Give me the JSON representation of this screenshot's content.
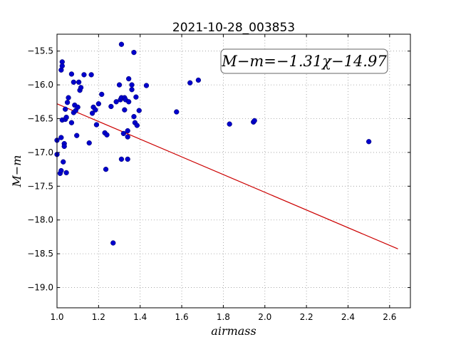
{
  "chart_data": {
    "type": "scatter",
    "title": "2021-10-28_003853",
    "xlabel": "airmass",
    "ylabel": "M−m",
    "xlim": [
      1.0,
      2.7
    ],
    "ylim": [
      -19.3,
      -15.25
    ],
    "y_inverted": true,
    "grid": true,
    "xticks": [
      1.0,
      1.2,
      1.4,
      1.6,
      1.8,
      2.0,
      2.2,
      2.4,
      2.6
    ],
    "xtick_labels": [
      "1.0",
      "1.2",
      "1.4",
      "1.6",
      "1.8",
      "2.0",
      "2.2",
      "2.4",
      "2.6"
    ],
    "yticks": [
      -15.5,
      -16.0,
      -16.5,
      -17.0,
      -17.5,
      -18.0,
      -18.5,
      -19.0
    ],
    "ytick_labels": [
      "−15.5",
      "−16.0",
      "−16.5",
      "−17.0",
      "−17.5",
      "−18.0",
      "−18.5",
      "−19.0"
    ],
    "annotation": "M−m=−1.31χ−14.97",
    "fit": {
      "slope": -1.31,
      "intercept": -14.97,
      "x_range": [
        1.0,
        2.64
      ],
      "color": "#cc0000"
    },
    "point_color": "#0000cc",
    "points": [
      [
        1.0,
        -16.82
      ],
      [
        1.0,
        -17.03
      ],
      [
        1.015,
        -17.31
      ],
      [
        1.02,
        -16.78
      ],
      [
        1.02,
        -17.27
      ],
      [
        1.02,
        -15.78
      ],
      [
        1.025,
        -15.66
      ],
      [
        1.025,
        -15.72
      ],
      [
        1.025,
        -16.52
      ],
      [
        1.03,
        -17.14
      ],
      [
        1.035,
        -16.87
      ],
      [
        1.035,
        -16.91
      ],
      [
        1.04,
        -16.36
      ],
      [
        1.04,
        -16.51
      ],
      [
        1.045,
        -16.48
      ],
      [
        1.045,
        -17.3
      ],
      [
        1.05,
        -16.26
      ],
      [
        1.055,
        -16.19
      ],
      [
        1.07,
        -15.84
      ],
      [
        1.07,
        -16.56
      ],
      [
        1.08,
        -15.96
      ],
      [
        1.08,
        -16.41
      ],
      [
        1.085,
        -16.3
      ],
      [
        1.09,
        -16.38
      ],
      [
        1.095,
        -16.75
      ],
      [
        1.1,
        -16.33
      ],
      [
        1.105,
        -15.96
      ],
      [
        1.11,
        -16.08
      ],
      [
        1.115,
        -16.04
      ],
      [
        1.13,
        -15.85
      ],
      [
        1.155,
        -16.86
      ],
      [
        1.165,
        -15.85
      ],
      [
        1.17,
        -16.42
      ],
      [
        1.175,
        -16.33
      ],
      [
        1.185,
        -16.37
      ],
      [
        1.19,
        -16.59
      ],
      [
        1.2,
        -16.28
      ],
      [
        1.215,
        -16.14
      ],
      [
        1.23,
        -16.71
      ],
      [
        1.235,
        -17.25
      ],
      [
        1.24,
        -16.74
      ],
      [
        1.26,
        -16.32
      ],
      [
        1.27,
        -18.34
      ],
      [
        1.285,
        -16.25
      ],
      [
        1.3,
        -16.0
      ],
      [
        1.305,
        -16.22
      ],
      [
        1.31,
        -15.4
      ],
      [
        1.31,
        -16.19
      ],
      [
        1.31,
        -17.1
      ],
      [
        1.32,
        -16.72
      ],
      [
        1.325,
        -16.19
      ],
      [
        1.325,
        -16.37
      ],
      [
        1.33,
        -16.22
      ],
      [
        1.34,
        -16.77
      ],
      [
        1.34,
        -16.68
      ],
      [
        1.34,
        -17.1
      ],
      [
        1.345,
        -16.25
      ],
      [
        1.345,
        -15.91
      ],
      [
        1.36,
        -16.0
      ],
      [
        1.36,
        -16.07
      ],
      [
        1.37,
        -15.52
      ],
      [
        1.37,
        -16.47
      ],
      [
        1.375,
        -16.56
      ],
      [
        1.38,
        -16.18
      ],
      [
        1.385,
        -16.6
      ],
      [
        1.395,
        -16.38
      ],
      [
        1.43,
        -16.01
      ],
      [
        1.575,
        -16.4
      ],
      [
        1.64,
        -15.97
      ],
      [
        1.68,
        -15.93
      ],
      [
        1.83,
        -16.58
      ],
      [
        1.945,
        -16.55
      ],
      [
        1.95,
        -16.53
      ],
      [
        2.5,
        -16.84
      ]
    ]
  }
}
